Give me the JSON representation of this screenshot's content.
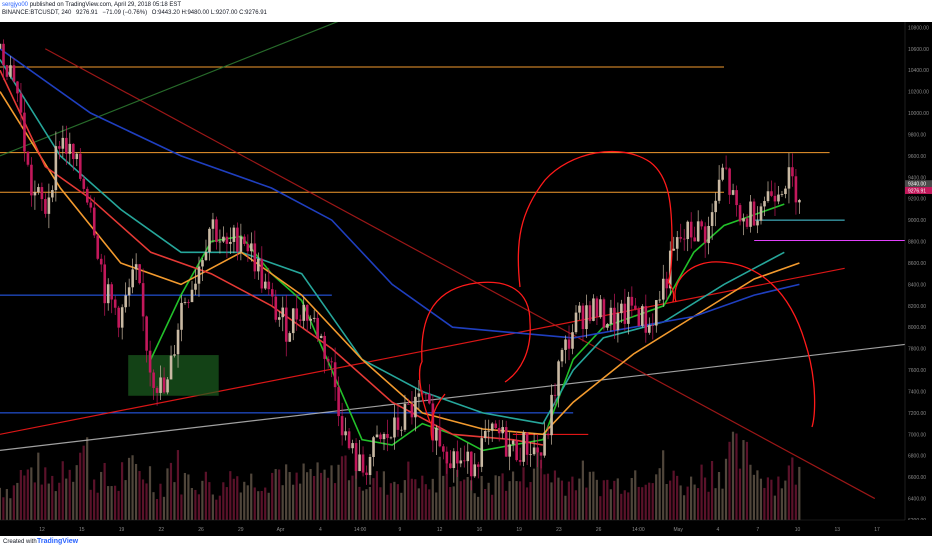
{
  "header": {
    "author": "sergjyo00",
    "published_text": "published on TradingView.com, April 29, 2018 05:18 EST",
    "symbol_line": "BINANCE:BTCUSDT, 240",
    "last": "9276.91",
    "change": "−71.09 (−0.76%)",
    "ohlc": "O:9443.20 H:9480.00 L:9207.00 C:9276.91"
  },
  "footer": {
    "created_with": "Created with",
    "brand": "TradingView"
  },
  "colors": {
    "background": "#000000",
    "bull_candle": "#c9b9a3",
    "bear_candle": "#c2185b",
    "ma_green": "#22c02a",
    "ma_teal": "#26a69a",
    "ma_orange": "#f29a2e",
    "ma_red": "#e53935",
    "ma_blue": "#1f3fbf",
    "annotation_red": "#ff1a1a",
    "annotation_magenta": "#e040fb",
    "annotation_cyan": "#4dd0e1",
    "trend_white": "#bdbdbd"
  },
  "chart_data": {
    "type": "candlestick",
    "symbol": "BTCUSDT",
    "timeframe": "240",
    "y_axis": {
      "ticks": [
        "10800.00",
        "10600.00",
        "10400.00",
        "10200.00",
        "10000.00",
        "9800.00",
        "9600.00",
        "9400.00",
        "9200.00",
        "9000.00",
        "8800.00",
        "8600.00",
        "8400.00",
        "8200.00",
        "8000.00",
        "7800.00",
        "7600.00",
        "7400.00",
        "7200.00",
        "7000.00",
        "6800.00",
        "6600.00",
        "6400.00",
        "6200.00"
      ],
      "price_tags": [
        {
          "label": "9340.00",
          "value": 9340,
          "color": "#4a4a4a"
        },
        {
          "label": "9276.91",
          "value": 9276.91,
          "color": "#c2185b"
        }
      ],
      "range": [
        6200,
        10850
      ]
    },
    "x_axis": {
      "ticks": [
        "12",
        "15",
        "19",
        "22",
        "26",
        "29",
        "Apr",
        "4",
        "14:00",
        "9",
        "12",
        "16",
        "19",
        "23",
        "26",
        "14:00",
        "May",
        "4",
        "7",
        "10",
        "13",
        "17"
      ],
      "range_days": [
        0,
        60
      ]
    },
    "price_path": [
      [
        0,
        10600
      ],
      [
        1,
        10350
      ],
      [
        2,
        9300
      ],
      [
        3,
        9100
      ],
      [
        4,
        9800
      ],
      [
        5,
        9500
      ],
      [
        6,
        9200
      ],
      [
        7,
        8300
      ],
      [
        8,
        8100
      ],
      [
        9,
        8500
      ],
      [
        10,
        7600
      ],
      [
        11,
        7350
      ],
      [
        12,
        8200
      ],
      [
        13,
        8500
      ],
      [
        14,
        9000
      ],
      [
        15,
        8700
      ],
      [
        16,
        8900
      ],
      [
        17,
        8600
      ],
      [
        18,
        8200
      ],
      [
        19,
        8000
      ],
      [
        20,
        8200
      ],
      [
        21,
        8000
      ],
      [
        22,
        7600
      ],
      [
        23,
        6900
      ],
      [
        24,
        6650
      ],
      [
        25,
        6900
      ],
      [
        26,
        7000
      ],
      [
        27,
        7200
      ],
      [
        28,
        7300
      ],
      [
        29,
        7000
      ],
      [
        30,
        6800
      ],
      [
        31,
        6700
      ],
      [
        32,
        6900
      ],
      [
        33,
        7000
      ],
      [
        34,
        6850
      ],
      [
        35,
        6900
      ],
      [
        36,
        6800
      ],
      [
        37,
        7600
      ],
      [
        38,
        8000
      ],
      [
        39,
        8200
      ],
      [
        40,
        8100
      ],
      [
        41,
        8050
      ],
      [
        42,
        8200
      ],
      [
        43,
        8000
      ],
      [
        44,
        8400
      ],
      [
        45,
        8800
      ],
      [
        46,
        8900
      ],
      [
        47,
        8900
      ],
      [
        48,
        9500
      ],
      [
        49,
        8950
      ],
      [
        50,
        9100
      ],
      [
        51,
        9250
      ],
      [
        52,
        9400
      ],
      [
        53,
        9280
      ]
    ],
    "volumes": [
      40,
      55,
      62,
      48,
      70,
      85,
      52,
      44,
      60,
      58,
      42,
      66,
      50,
      47,
      38,
      55,
      49,
      53,
      61,
      45,
      57,
      52,
      70,
      64,
      48,
      46,
      51,
      55,
      43,
      60,
      58,
      40,
      44,
      53,
      50,
      72,
      58,
      49,
      54,
      47,
      45,
      52,
      60,
      66,
      50,
      44,
      57,
      62,
      80,
      75,
      58,
      49,
      61,
      55
    ],
    "moving_averages": [
      {
        "color": "#22c02a",
        "points": [
          [
            10,
            7700
          ],
          [
            12,
            8300
          ],
          [
            14,
            8800
          ],
          [
            16,
            8850
          ],
          [
            18,
            8500
          ],
          [
            20,
            8250
          ],
          [
            22,
            7600
          ],
          [
            24,
            6950
          ],
          [
            26,
            6900
          ],
          [
            28,
            7100
          ],
          [
            30,
            7000
          ],
          [
            32,
            6850
          ],
          [
            34,
            6900
          ],
          [
            36,
            6950
          ],
          [
            38,
            7700
          ],
          [
            40,
            8000
          ],
          [
            42,
            8100
          ],
          [
            44,
            8200
          ],
          [
            46,
            8700
          ],
          [
            48,
            8950
          ],
          [
            50,
            9050
          ],
          [
            52,
            9150
          ]
        ]
      },
      {
        "color": "#26a69a",
        "points": [
          [
            0,
            10500
          ],
          [
            4,
            9600
          ],
          [
            8,
            9100
          ],
          [
            12,
            8700
          ],
          [
            16,
            8700
          ],
          [
            20,
            8500
          ],
          [
            24,
            7700
          ],
          [
            28,
            7400
          ],
          [
            32,
            7200
          ],
          [
            36,
            7100
          ],
          [
            38,
            7600
          ],
          [
            40,
            7900
          ],
          [
            44,
            8050
          ],
          [
            48,
            8400
          ],
          [
            52,
            8700
          ]
        ]
      },
      {
        "color": "#f29a2e",
        "points": [
          [
            0,
            10200
          ],
          [
            4,
            9300
          ],
          [
            8,
            8600
          ],
          [
            12,
            8400
          ],
          [
            16,
            8700
          ],
          [
            20,
            8300
          ],
          [
            24,
            7700
          ],
          [
            28,
            7200
          ],
          [
            32,
            7050
          ],
          [
            36,
            7000
          ],
          [
            38,
            7300
          ],
          [
            42,
            7750
          ],
          [
            46,
            8100
          ],
          [
            50,
            8450
          ],
          [
            53,
            8600
          ]
        ]
      },
      {
        "color": "#e53935",
        "points": [
          [
            0,
            10400
          ],
          [
            3,
            9500
          ],
          [
            6,
            9200
          ],
          [
            10,
            8700
          ],
          [
            14,
            8500
          ],
          [
            18,
            8200
          ],
          [
            22,
            7800
          ],
          [
            26,
            7300
          ],
          [
            30,
            7000
          ],
          [
            34,
            6950
          ],
          [
            36,
            6900
          ]
        ]
      },
      {
        "color": "#1f3fbf",
        "points": [
          [
            0,
            10600
          ],
          [
            6,
            10000
          ],
          [
            12,
            9600
          ],
          [
            18,
            9300
          ],
          [
            22,
            9000
          ],
          [
            26,
            8400
          ],
          [
            30,
            8000
          ],
          [
            34,
            7950
          ],
          [
            38,
            7900
          ],
          [
            42,
            8000
          ],
          [
            46,
            8100
          ],
          [
            50,
            8300
          ],
          [
            53,
            8400
          ]
        ]
      }
    ],
    "horizontal_lines": [
      {
        "value": 10430,
        "from": 0,
        "to": 48,
        "color": "#f29a2e"
      },
      {
        "value": 9630,
        "from": 0,
        "to": 55,
        "color": "#f29a2e"
      },
      {
        "value": 9260,
        "from": 0,
        "to": 48,
        "color": "#f29a2e"
      },
      {
        "value": 8300,
        "from": 0,
        "to": 22,
        "color": "#2962ff"
      },
      {
        "value": 7200,
        "from": 0,
        "to": 38,
        "color": "#2962ff"
      },
      {
        "value": 7000,
        "from": 34,
        "to": 39,
        "color": "#ff1a1a"
      },
      {
        "value": 8810,
        "from": 50,
        "to": 73,
        "color": "#e040fb"
      },
      {
        "value": 9000,
        "from": 50,
        "to": 56,
        "color": "#4dd0e1"
      }
    ],
    "trend_lines": [
      {
        "from": [
          0,
          7000
        ],
        "to": [
          56,
          8550
        ],
        "color": "#ff1a1a"
      },
      {
        "from": [
          0,
          6850
        ],
        "to": [
          74,
          8070
        ],
        "color": "#bdbdbd"
      },
      {
        "from": [
          3,
          10600
        ],
        "to": [
          58,
          6400
        ],
        "color": "#b71c1c"
      },
      {
        "from": [
          0,
          9600
        ],
        "to": [
          25,
          11000
        ],
        "color": "#2e7d32"
      }
    ],
    "shapes": [
      {
        "type": "rect",
        "x": [
          8.5,
          14.5
        ],
        "y": [
          7360,
          7740
        ],
        "color": "#1b5e20"
      }
    ]
  }
}
